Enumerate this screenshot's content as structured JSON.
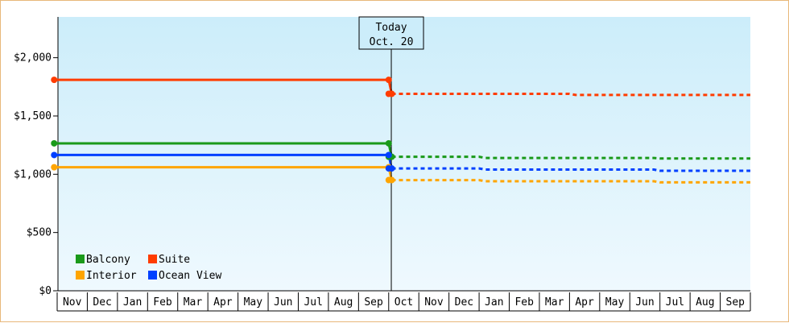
{
  "chart_data": {
    "type": "line",
    "title": "",
    "xlabel": "",
    "ylabel": "",
    "ylim": [
      0,
      2350
    ],
    "y_ticks": [
      {
        "value": 0,
        "label": "$0"
      },
      {
        "value": 500,
        "label": "$500"
      },
      {
        "value": 1000,
        "label": "$1,000"
      },
      {
        "value": 1500,
        "label": "$1,500"
      },
      {
        "value": 2000,
        "label": "$2,000"
      }
    ],
    "x_ticks": [
      "Nov",
      "Dec",
      "Jan",
      "Feb",
      "Mar",
      "Apr",
      "May",
      "Jun",
      "Jul",
      "Aug",
      "Sep",
      "Oct",
      "Nov",
      "Dec",
      "Jan",
      "Feb",
      "Mar",
      "Apr",
      "May",
      "Jun",
      "Jul",
      "Aug",
      "Sep"
    ],
    "marker": {
      "lines": [
        "Today",
        "Oct. 20"
      ],
      "x": 11.1
    },
    "legend": {
      "placement": "bottom-left"
    },
    "background": {
      "top": "#ccedfa",
      "bottom": "#eff9fe"
    },
    "grid": false,
    "series": [
      {
        "name": "Balcony",
        "color": "#1a9a1a",
        "solid": [
          [
            -0.1,
            1265
          ],
          [
            11,
            1265
          ],
          [
            11.1,
            1150
          ]
        ],
        "dashed": [
          [
            11.1,
            1150
          ],
          [
            14,
            1150
          ],
          [
            14.2,
            1140
          ],
          [
            19.8,
            1140
          ],
          [
            20,
            1135
          ],
          [
            23,
            1135
          ]
        ]
      },
      {
        "name": "Suite",
        "color": "#ff3c00",
        "solid": [
          [
            -0.1,
            1810
          ],
          [
            11,
            1810
          ],
          [
            11.1,
            1690
          ]
        ],
        "dashed": [
          [
            11.1,
            1690
          ],
          [
            17,
            1690
          ],
          [
            17.2,
            1680
          ],
          [
            23,
            1680
          ]
        ]
      },
      {
        "name": "Interior",
        "color": "#ffa500",
        "solid": [
          [
            -0.1,
            1060
          ],
          [
            11,
            1060
          ],
          [
            11.1,
            950
          ]
        ],
        "dashed": [
          [
            11.1,
            950
          ],
          [
            14,
            950
          ],
          [
            14.2,
            940
          ],
          [
            19.8,
            940
          ],
          [
            20,
            930
          ],
          [
            23,
            930
          ]
        ]
      },
      {
        "name": "Ocean View",
        "color": "#0040ff",
        "solid": [
          [
            -0.1,
            1165
          ],
          [
            11,
            1165
          ],
          [
            11.1,
            1050
          ]
        ],
        "dashed": [
          [
            11.1,
            1050
          ],
          [
            14,
            1050
          ],
          [
            14.2,
            1040
          ],
          [
            19.8,
            1040
          ],
          [
            20,
            1030
          ],
          [
            23,
            1030
          ]
        ]
      }
    ],
    "points": [
      {
        "series": 0,
        "x": -0.1,
        "y": 1265
      },
      {
        "series": 0,
        "x": 11,
        "y": 1265
      },
      {
        "series": 0,
        "x": 11,
        "y": 1150
      },
      {
        "series": 0,
        "x": 11.1,
        "y": 1150
      },
      {
        "series": 1,
        "x": -0.1,
        "y": 1810
      },
      {
        "series": 1,
        "x": 11,
        "y": 1810
      },
      {
        "series": 1,
        "x": 11,
        "y": 1690
      },
      {
        "series": 1,
        "x": 11.1,
        "y": 1690
      },
      {
        "series": 2,
        "x": -0.1,
        "y": 1060
      },
      {
        "series": 2,
        "x": 11,
        "y": 1060
      },
      {
        "series": 2,
        "x": 11,
        "y": 950
      },
      {
        "series": 2,
        "x": 11.1,
        "y": 950
      },
      {
        "series": 3,
        "x": -0.1,
        "y": 1165
      },
      {
        "series": 3,
        "x": 11,
        "y": 1165
      },
      {
        "series": 3,
        "x": 11,
        "y": 1050
      },
      {
        "series": 3,
        "x": 11.1,
        "y": 1050
      }
    ]
  }
}
